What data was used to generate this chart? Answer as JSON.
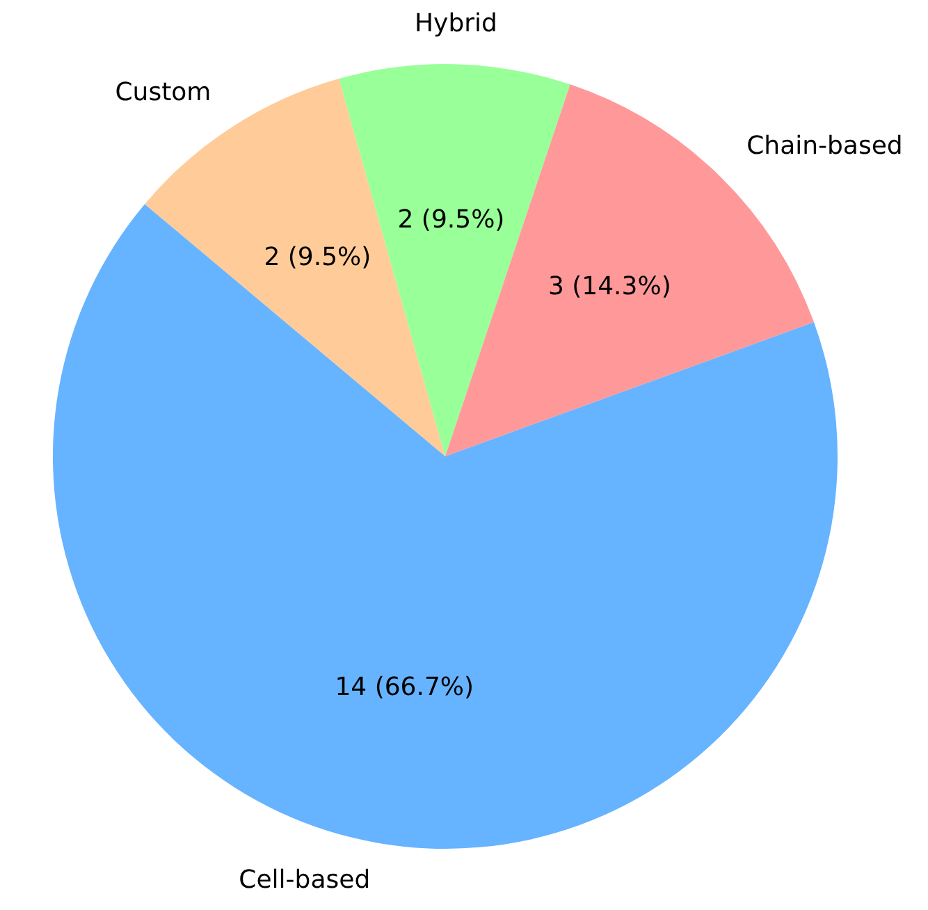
{
  "chart_data": {
    "type": "pie",
    "categories": [
      "Cell-based",
      "Chain-based",
      "Hybrid",
      "Custom"
    ],
    "values": [
      14,
      3,
      2,
      2
    ],
    "colors": [
      "#66b3ff",
      "#ff9999",
      "#99ff99",
      "#ffcc99"
    ],
    "value_labels": [
      "14 (66.7%)",
      "3 (14.3%)",
      "2 (9.5%)",
      "2 (9.5%)"
    ],
    "legend": false
  }
}
